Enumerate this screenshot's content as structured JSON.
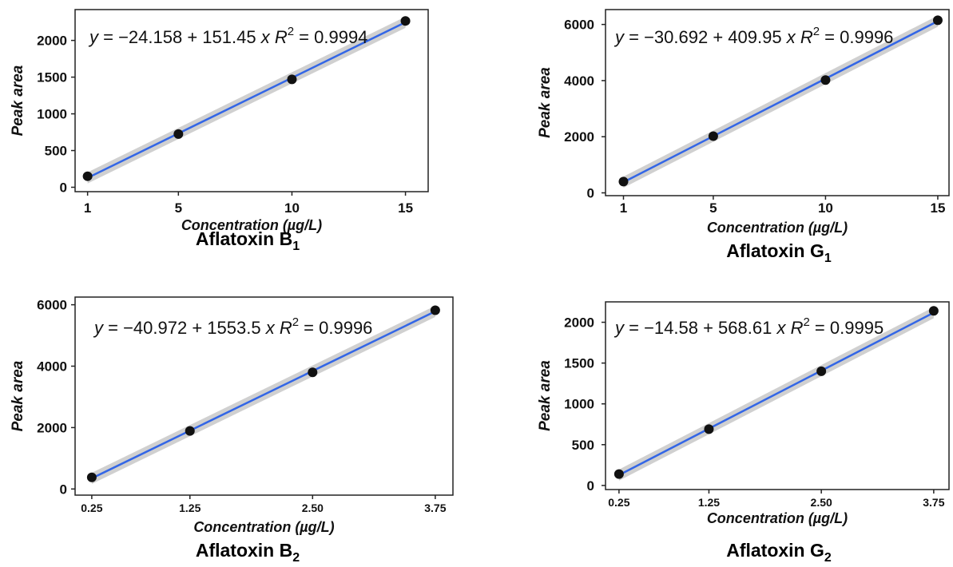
{
  "chart_data": [
    {
      "type": "scatter",
      "caption": "Aflatoxin B",
      "caption_sub": "1",
      "xlabel": "Concentration (µg/L)",
      "ylabel": "Peak area",
      "x": [
        1,
        5,
        10,
        15
      ],
      "y": [
        150,
        725,
        1470,
        2265
      ],
      "x_ticks": [
        "1",
        "5",
        "10",
        "15"
      ],
      "y_ticks": [
        "0",
        "500",
        "1000",
        "1500",
        "2000"
      ],
      "xlim": [
        0.45,
        16.0
      ],
      "ylim": [
        -60,
        2420
      ],
      "fit": {
        "intercept": -24.158,
        "slope": 151.45,
        "r2": "0.9994"
      },
      "equation": {
        "y": "y",
        "lhs": " = −24.158 + 151.45 ",
        "x": "x",
        "r": "R",
        "sup": "2",
        "rhs": " = 0.9994"
      }
    },
    {
      "type": "scatter",
      "caption": "Aflatoxin G",
      "caption_sub": "1",
      "xlabel": "Concentration (µg/L)",
      "ylabel": "Peak area",
      "x": [
        1,
        5,
        10,
        15
      ],
      "y": [
        400,
        2020,
        4020,
        6150
      ],
      "x_ticks": [
        "1",
        "5",
        "10",
        "15"
      ],
      "y_ticks": [
        "0",
        "2000",
        "4000",
        "6000"
      ],
      "xlim": [
        0.2,
        15.5
      ],
      "ylim": [
        -100,
        6530
      ],
      "fit": {
        "intercept": -30.692,
        "slope": 409.95,
        "r2": "0.9996"
      },
      "equation": {
        "y": "y",
        "lhs": " = −30.692 + 409.95 ",
        "x": "x",
        "r": "R",
        "sup": "2",
        "rhs": " = 0.9996"
      }
    },
    {
      "type": "scatter",
      "caption": "Aflatoxin B",
      "caption_sub": "2",
      "xlabel": "Concentration (µg/L)",
      "ylabel": "Peak area",
      "x": [
        0.25,
        1.25,
        2.5,
        3.75
      ],
      "y": [
        380,
        1890,
        3800,
        5820
      ],
      "x_ticks": [
        "0.25",
        "1.25",
        "2.50",
        "3.75"
      ],
      "x_tick_values": [
        0.25,
        1.25,
        2.5,
        3.75
      ],
      "y_ticks": [
        "0",
        "2000",
        "4000",
        "6000"
      ],
      "xlim": [
        0.08,
        3.93
      ],
      "ylim": [
        -200,
        6250
      ],
      "fit": {
        "intercept": -40.972,
        "slope": 1553.5,
        "r2": "0.9996"
      },
      "equation": {
        "y": "y",
        "lhs": " = −40.972 + 1553.5 ",
        "x": "x",
        "r": "R",
        "sup": "2",
        "rhs": " = 0.9996"
      }
    },
    {
      "type": "scatter",
      "caption": "Aflatoxin G",
      "caption_sub": "2",
      "xlabel": "Concentration (µg/L)",
      "ylabel": "Peak area",
      "x": [
        0.25,
        1.25,
        2.5,
        3.75
      ],
      "y": [
        140,
        690,
        1400,
        2140
      ],
      "x_ticks": [
        "0.25",
        "1.25",
        "2.50",
        "3.75"
      ],
      "x_tick_values": [
        0.25,
        1.25,
        2.5,
        3.75
      ],
      "y_ticks": [
        "0",
        "500",
        "1000",
        "1500",
        "2000"
      ],
      "xlim": [
        0.1,
        3.92
      ],
      "ylim": [
        -50,
        2250
      ],
      "fit": {
        "intercept": -14.58,
        "slope": 568.61,
        "r2": "0.9995"
      },
      "equation": {
        "y": "y",
        "lhs": " = −14.58 + 568.61 ",
        "x": "x",
        "r": "R",
        "sup": "2",
        "rhs": " = 0.9995"
      }
    }
  ],
  "colors": {
    "fit_line": "#3366e6",
    "confidence_band": "#c8c8c8",
    "points": "#111111",
    "frame": "#222222"
  }
}
